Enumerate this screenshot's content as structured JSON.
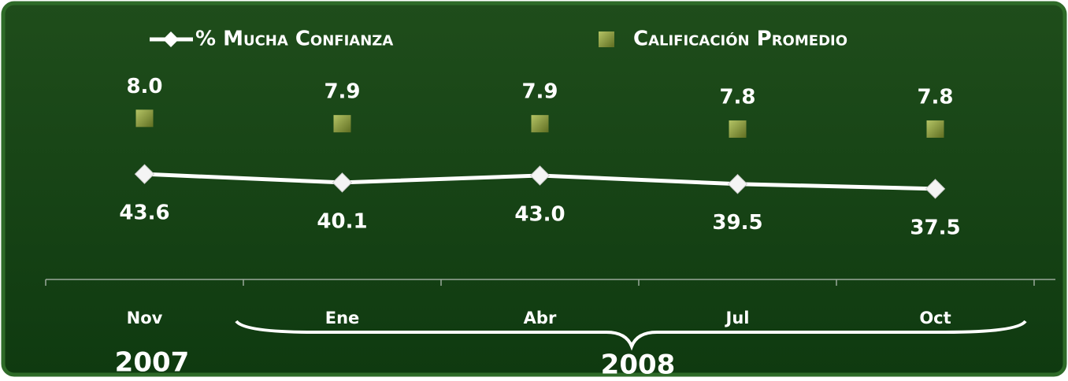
{
  "chart_data": {
    "type": "line",
    "categories": [
      "Nov",
      "Ene",
      "Abr",
      "Jul",
      "Oct"
    ],
    "series": [
      {
        "name": "% Mucha Confianza",
        "color": "#ffffff",
        "values": [
          43.6,
          40.1,
          43.0,
          39.5,
          37.5
        ],
        "value_labels": [
          "43.6",
          "40.1",
          "43.0",
          "39.5",
          "37.5"
        ]
      },
      {
        "name": "Calificación Promedio",
        "color": "#8c9c3c",
        "axis": "y2",
        "values": [
          8.0,
          7.9,
          7.9,
          7.8,
          7.8
        ],
        "value_labels": [
          "8.0",
          "7.9",
          "7.9",
          "7.8",
          "7.8"
        ]
      }
    ],
    "ylim": [
      0,
      100
    ],
    "y2lim": [
      5,
      9.5
    ],
    "annotations": [
      "2007",
      "2008"
    ],
    "legend": "top"
  }
}
